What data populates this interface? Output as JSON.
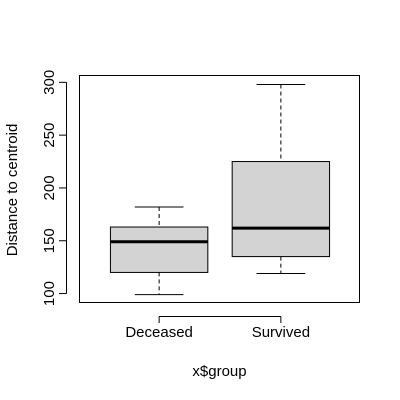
{
  "chart_data": {
    "type": "boxplot",
    "title": "",
    "xlabel": "x$group",
    "ylabel": "Distance to centroid",
    "categories": [
      "Deceased",
      "Survived"
    ],
    "boxes": [
      {
        "name": "Deceased",
        "whisker_low": 99,
        "q1": 120,
        "median": 149,
        "q3": 163,
        "whisker_high": 182
      },
      {
        "name": "Survived",
        "whisker_low": 119,
        "q1": 135,
        "median": 162,
        "q3": 225,
        "whisker_high": 298
      }
    ],
    "ylim": [
      92,
      306
    ],
    "yticks": [
      100,
      150,
      200,
      250,
      300
    ],
    "ytick_labels": [
      "100",
      "150",
      "200",
      "250",
      "300"
    ],
    "box_fill": "#d3d3d3",
    "grid": false
  }
}
